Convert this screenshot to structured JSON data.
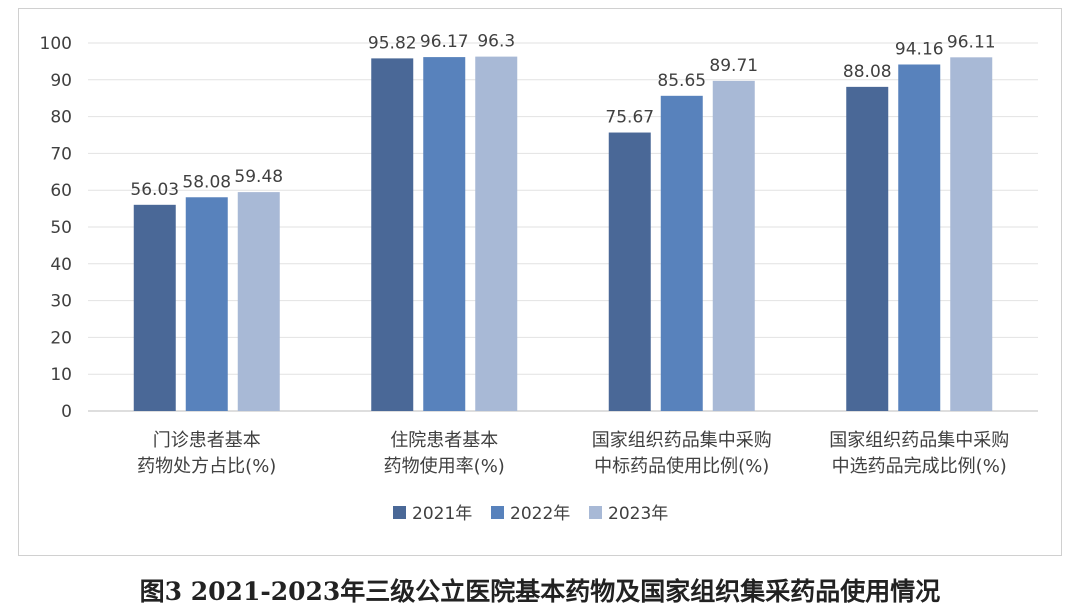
{
  "caption": "图3 2021-2023年三级公立医院基本药物及国家组织集采药品使用情况",
  "chart_data": {
    "type": "bar",
    "categories": [
      [
        "门诊患者基本",
        "药物处方占比(%)"
      ],
      [
        "住院患者基本",
        "药物使用率(%)"
      ],
      [
        "国家组织药品集中采购",
        "中标药品使用比例(%)"
      ],
      [
        "国家组织药品集中采购",
        "中选药品完成比例(%)"
      ]
    ],
    "series": [
      {
        "name": "2021年",
        "color": "#4a6897",
        "values": [
          56.03,
          95.82,
          75.67,
          88.08
        ]
      },
      {
        "name": "2022年",
        "color": "#5882bc",
        "values": [
          58.08,
          96.17,
          85.65,
          94.16
        ]
      },
      {
        "name": "2023年",
        "color": "#a8b9d6",
        "values": [
          59.48,
          96.3,
          89.71,
          96.11
        ]
      }
    ],
    "data_labels": [
      [
        "56.03",
        "95.82",
        "75.67",
        "88.08"
      ],
      [
        "58.08",
        "96.17",
        "85.65",
        "94.16"
      ],
      [
        "59.48",
        "96.3",
        "89.71",
        "96.11"
      ]
    ],
    "y_ticks": [
      "0",
      "10",
      "20",
      "30",
      "40",
      "50",
      "60",
      "70",
      "80",
      "90",
      "100"
    ],
    "ylim": [
      0,
      100
    ],
    "grid": true,
    "legend_position": "bottom"
  }
}
